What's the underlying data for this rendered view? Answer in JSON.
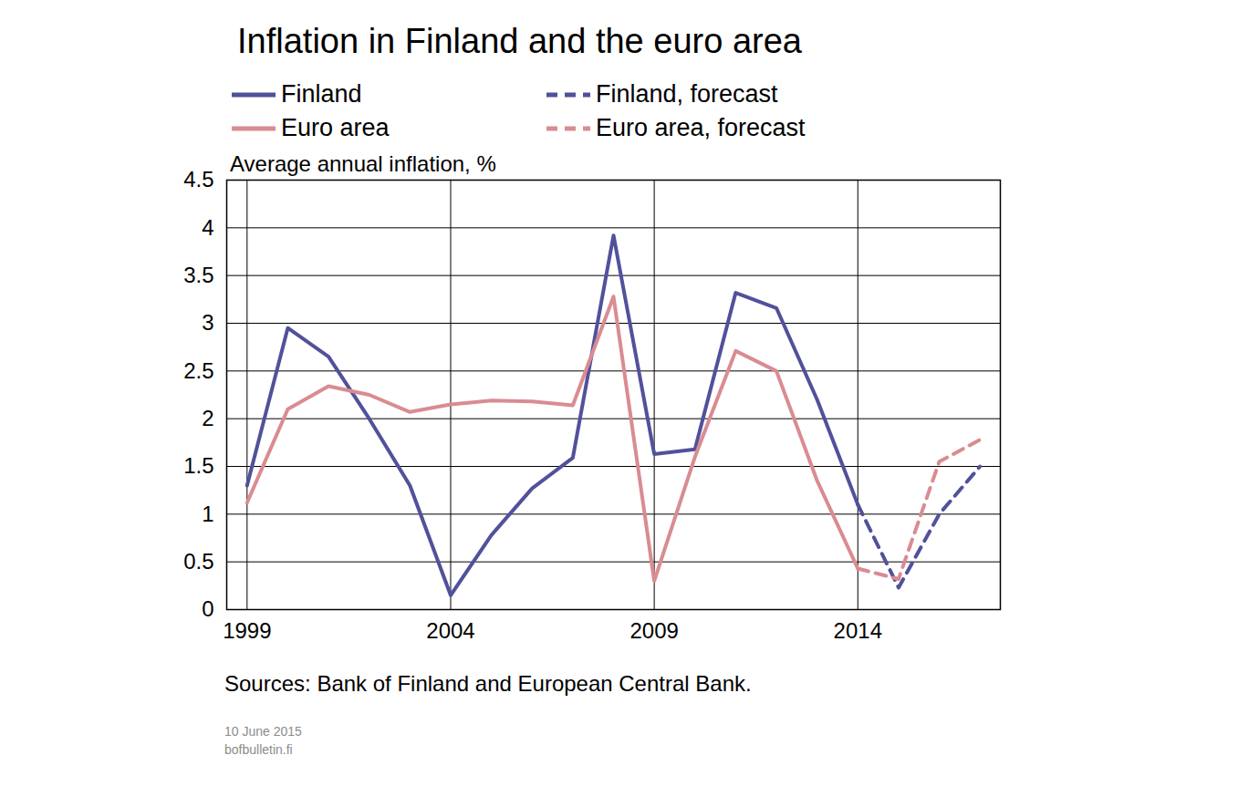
{
  "chart_data": {
    "type": "line",
    "title": "Inflation in Finland and the euro area",
    "y_label": "Average annual inflation, %",
    "source": "Sources: Bank of Finland and European Central Bank.",
    "notes": [
      "10 June 2015",
      "bofbulletin.fi"
    ],
    "x": [
      1999,
      2000,
      2001,
      2002,
      2003,
      2004,
      2005,
      2006,
      2007,
      2008,
      2009,
      2010,
      2011,
      2012,
      2013,
      2014,
      2015,
      2016,
      2017
    ],
    "series": [
      {
        "name": "Finland",
        "color": "#51519b",
        "line_style": "solid",
        "values": [
          1.3,
          2.95,
          2.65,
          2.0,
          1.3,
          0.15,
          0.78,
          1.27,
          1.59,
          3.92,
          1.63,
          1.68,
          3.32,
          3.16,
          2.2,
          1.1,
          null,
          null,
          null
        ]
      },
      {
        "name": "Finland, forecast",
        "color": "#51519b",
        "line_style": "dashed",
        "values": [
          null,
          null,
          null,
          null,
          null,
          null,
          null,
          null,
          null,
          null,
          null,
          null,
          null,
          null,
          null,
          1.1,
          0.23,
          1.0,
          1.5
        ]
      },
      {
        "name": "Euro area",
        "color": "#d98c91",
        "line_style": "solid",
        "values": [
          1.12,
          2.1,
          2.34,
          2.25,
          2.07,
          2.15,
          2.19,
          2.18,
          2.14,
          3.28,
          0.3,
          1.6,
          2.71,
          2.5,
          1.35,
          0.43,
          null,
          null,
          null
        ]
      },
      {
        "name": "Euro area, forecast",
        "color": "#d98c91",
        "line_style": "dashed",
        "values": [
          null,
          null,
          null,
          null,
          null,
          null,
          null,
          null,
          null,
          null,
          null,
          null,
          null,
          null,
          null,
          0.43,
          0.32,
          1.55,
          1.78
        ]
      }
    ],
    "xlim": [
      1998.5,
      2017.5
    ],
    "xticks": [
      1999,
      2004,
      2009,
      2014
    ],
    "ylim": [
      0,
      4.5
    ],
    "yticks": [
      0,
      0.5,
      1,
      1.5,
      2,
      2.5,
      3,
      3.5,
      4,
      4.5
    ],
    "grid": true,
    "legend": "top"
  }
}
